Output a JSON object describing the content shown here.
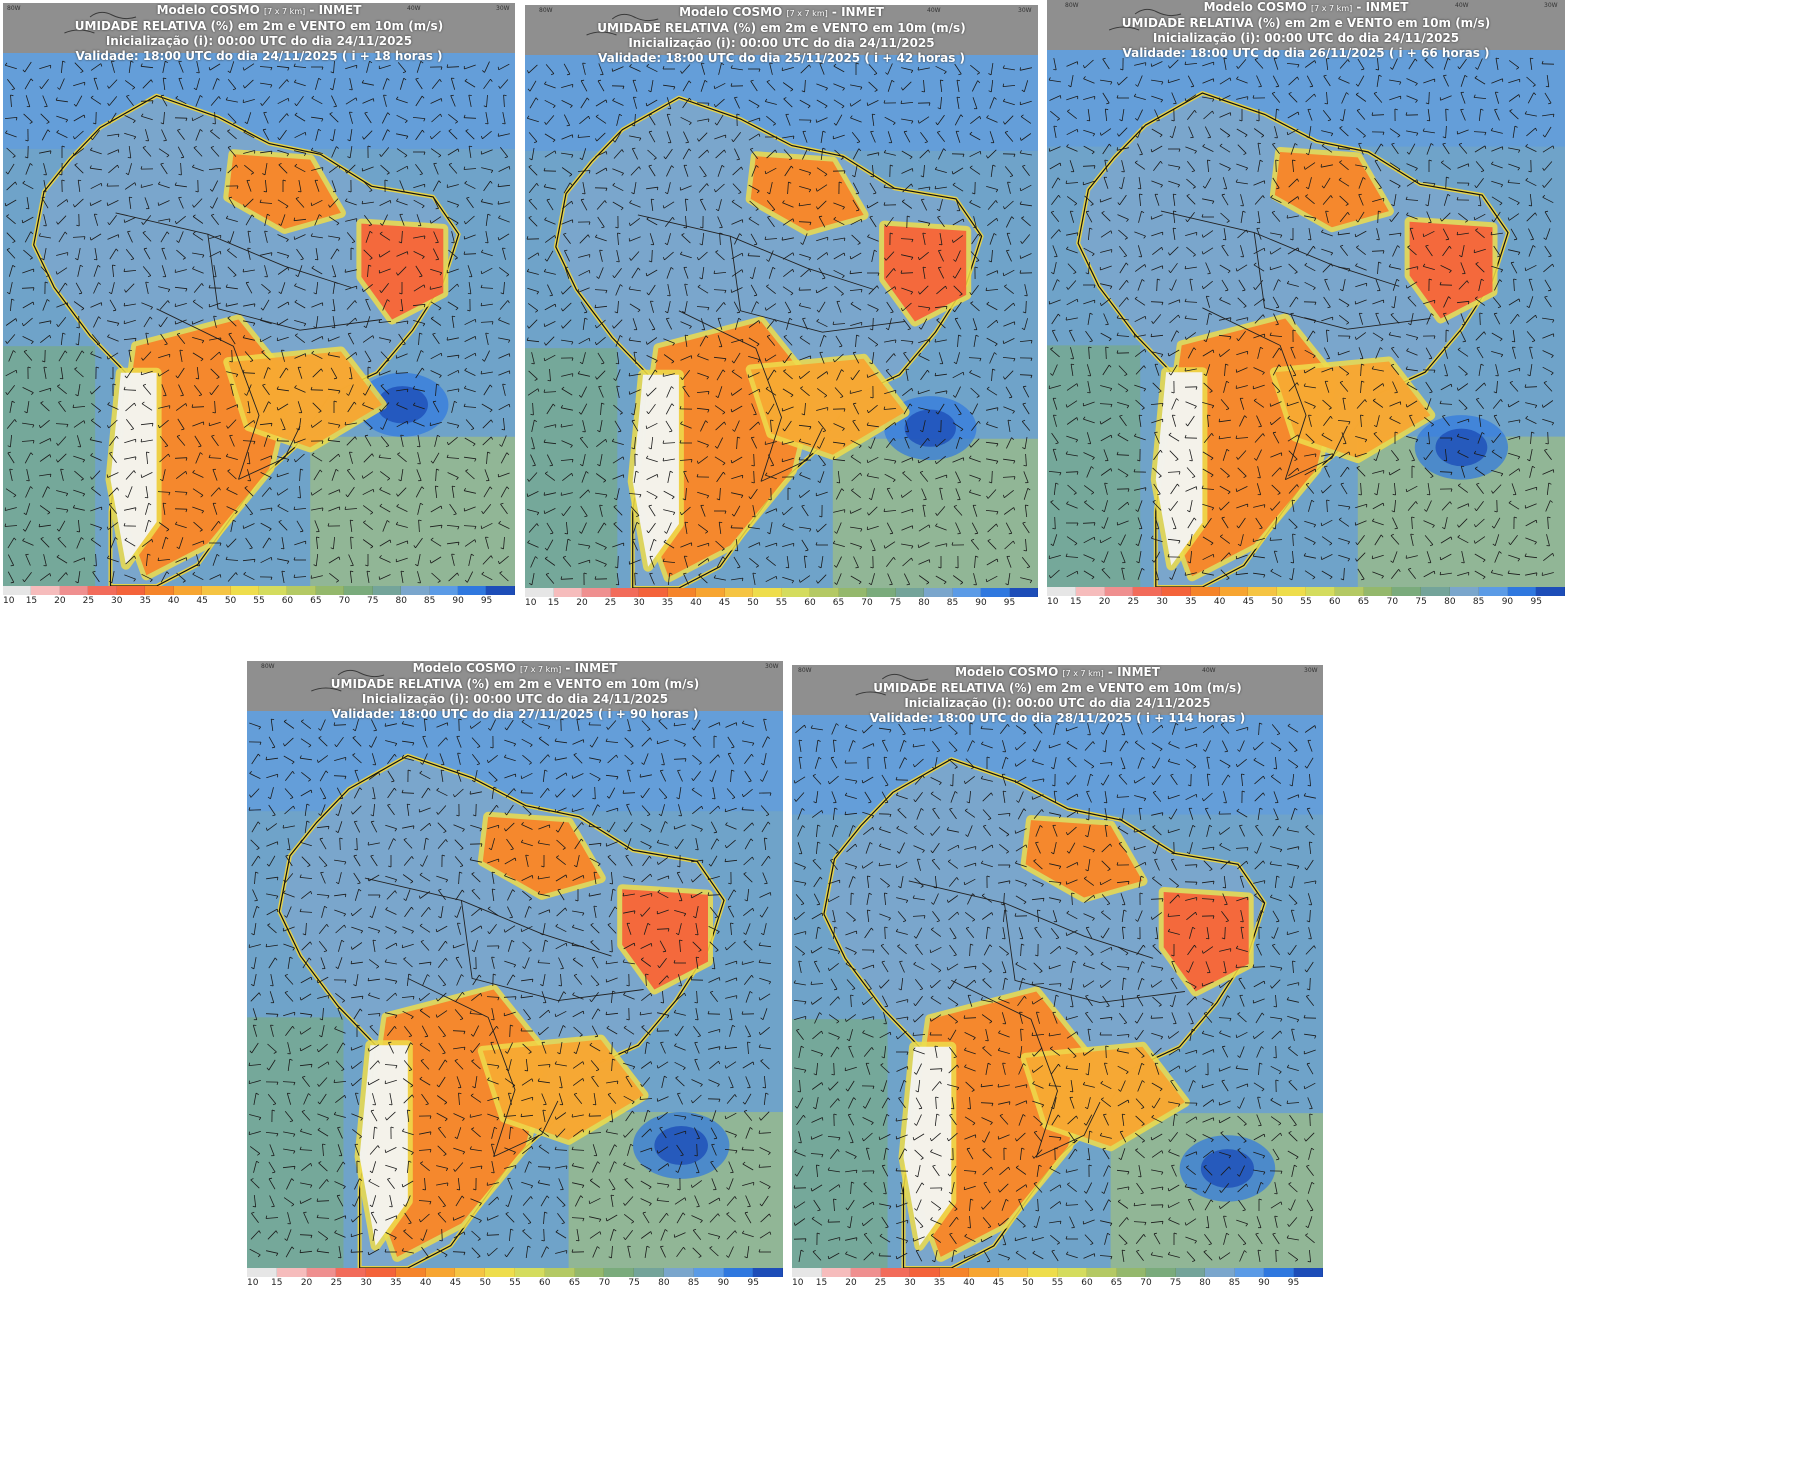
{
  "header": {
    "model_label": "Modelo COSMO",
    "resolution": "[7 x 7 km]",
    "source": "- INMET",
    "variable_line": "UMIDADE RELATIVA (%) em 2m e VENTO em 10m (m/s)",
    "init_line": "Inicialização (i): 00:00 UTC do dia 24/11/2025"
  },
  "panels": [
    {
      "validity": "Validade: 18:00 UTC do dia 24/11/2025 ( i + 18 horas )"
    },
    {
      "validity": "Validade: 18:00 UTC do dia 25/11/2025 ( i + 42 horas )"
    },
    {
      "validity": "Validade: 18:00 UTC do dia 26/11/2025 ( i + 66 horas )"
    },
    {
      "validity": "Validade: 18:00 UTC do dia 27/11/2025 ( i + 90 horas )"
    },
    {
      "validity": "Validade: 18:00 UTC do dia 28/11/2025 ( i + 114 horas )"
    }
  ],
  "map_labels": {
    "lon_80w": "80W",
    "lon_40w": "40W",
    "lon_30w": "30W"
  },
  "legend": {
    "labels": [
      "10",
      "15",
      "20",
      "25",
      "30",
      "35",
      "40",
      "45",
      "50",
      "55",
      "60",
      "65",
      "70",
      "75",
      "80",
      "85",
      "90",
      "95"
    ],
    "colors": [
      "#e6e6e6",
      "#f6bcbc",
      "#ef8f8f",
      "#f26b5a",
      "#f4633a",
      "#f5842a",
      "#f7a531",
      "#f5c443",
      "#eedd4c",
      "#d4dc5e",
      "#b4c964",
      "#94b86c",
      "#7aab7c",
      "#74a49a",
      "#7aa6cc",
      "#5b9be6",
      "#2f78df",
      "#1d4db8"
    ]
  }
}
